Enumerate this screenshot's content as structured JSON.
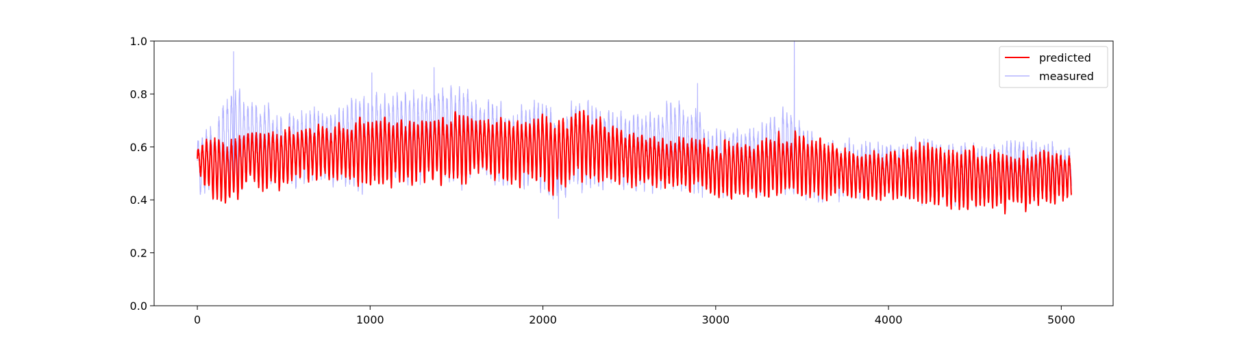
{
  "chart_data": {
    "type": "line",
    "title": "",
    "xlabel": "",
    "ylabel": "",
    "xlim": [
      -250,
      5300
    ],
    "ylim": [
      0.0,
      1.0
    ],
    "x_ticks": [
      0,
      1000,
      2000,
      3000,
      4000,
      5000
    ],
    "y_ticks": [
      0.0,
      0.2,
      0.4,
      0.6,
      0.8,
      1.0
    ],
    "x_tick_labels": [
      "0",
      "1000",
      "2000",
      "3000",
      "4000",
      "5000"
    ],
    "y_tick_labels": [
      "0.0",
      "0.2",
      "0.4",
      "0.6",
      "0.8",
      "1.0"
    ],
    "grid": false,
    "legend_position": "top-right",
    "n_points": 5060,
    "samples_per_cycle": 24,
    "series": [
      {
        "name": "predicted",
        "color": "#ff0000",
        "envelope_x": [
          0,
          100,
          200,
          300,
          500,
          600,
          800,
          1000,
          1200,
          1400,
          1600,
          1800,
          2000,
          2100,
          2200,
          2400,
          2600,
          2800,
          3000,
          3200,
          3400,
          3600,
          3800,
          4000,
          4200,
          4400,
          4600,
          4800,
          5060
        ],
        "envelope_high": [
          0.63,
          0.64,
          0.66,
          0.68,
          0.67,
          0.68,
          0.69,
          0.74,
          0.72,
          0.73,
          0.74,
          0.71,
          0.74,
          0.7,
          0.76,
          0.69,
          0.67,
          0.64,
          0.63,
          0.62,
          0.66,
          0.64,
          0.6,
          0.59,
          0.62,
          0.61,
          0.6,
          0.6,
          0.58
        ],
        "envelope_low": [
          0.5,
          0.4,
          0.38,
          0.47,
          0.44,
          0.48,
          0.48,
          0.46,
          0.47,
          0.47,
          0.48,
          0.47,
          0.45,
          0.43,
          0.48,
          0.47,
          0.46,
          0.45,
          0.42,
          0.4,
          0.42,
          0.41,
          0.41,
          0.41,
          0.38,
          0.37,
          0.37,
          0.37,
          0.41
        ]
      },
      {
        "name": "measured",
        "color": "#0000ff",
        "opacity": 0.3,
        "envelope_x": [
          0,
          100,
          200,
          300,
          500,
          600,
          800,
          1000,
          1200,
          1400,
          1600,
          1800,
          2000,
          2100,
          2200,
          2400,
          2600,
          2800,
          3000,
          3200,
          3400,
          3600,
          3800,
          4000,
          4200,
          4400,
          4600,
          4800,
          5060
        ],
        "envelope_high": [
          0.66,
          0.7,
          0.88,
          0.8,
          0.72,
          0.74,
          0.76,
          0.83,
          0.82,
          0.85,
          0.82,
          0.76,
          0.8,
          0.72,
          0.79,
          0.74,
          0.73,
          0.8,
          0.68,
          0.66,
          0.76,
          0.62,
          0.62,
          0.61,
          0.63,
          0.62,
          0.61,
          0.63,
          0.58
        ],
        "envelope_low": [
          0.42,
          0.42,
          0.44,
          0.46,
          0.46,
          0.46,
          0.46,
          0.45,
          0.46,
          0.46,
          0.47,
          0.45,
          0.44,
          0.4,
          0.46,
          0.45,
          0.44,
          0.44,
          0.42,
          0.42,
          0.43,
          0.42,
          0.42,
          0.42,
          0.41,
          0.41,
          0.41,
          0.41,
          0.45
        ],
        "spikes": [
          {
            "x": 210,
            "y": 0.96
          },
          {
            "x": 1370,
            "y": 0.9
          },
          {
            "x": 1010,
            "y": 0.88
          },
          {
            "x": 2895,
            "y": 0.84
          },
          {
            "x": 3455,
            "y": 1.0
          },
          {
            "x": 2090,
            "y": 0.33
          },
          {
            "x": 90,
            "y": 0.4
          }
        ]
      }
    ]
  }
}
